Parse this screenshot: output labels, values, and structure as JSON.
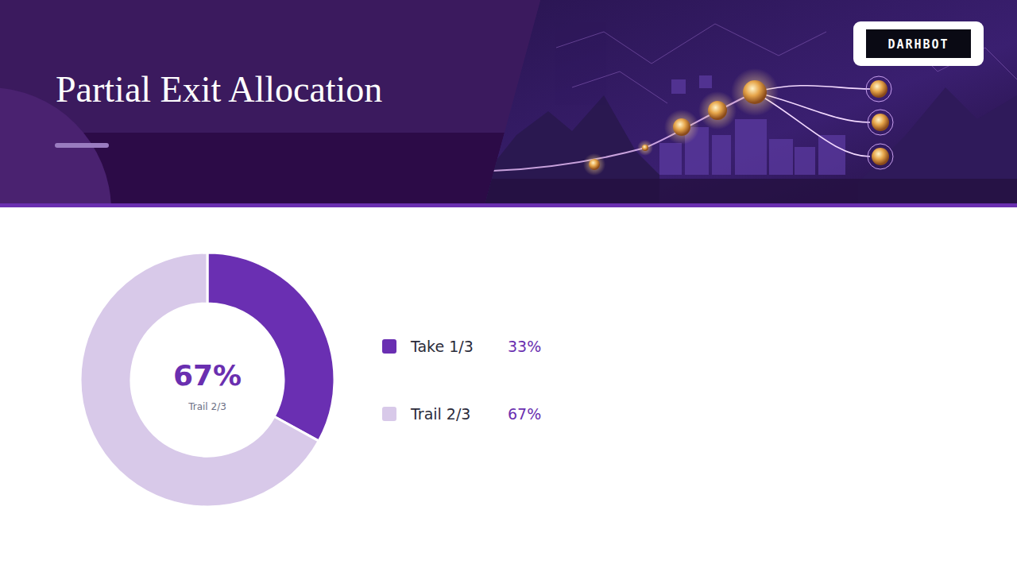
{
  "brand": "DARHBOT",
  "chart_data": {
    "type": "pie",
    "title": "Partial Exit Allocation",
    "categories": [
      "Take 1/3",
      "Trail 2/3"
    ],
    "values": [
      33,
      67
    ],
    "value_labels": [
      "33%",
      "67%"
    ],
    "colors": [
      "#6a2fb2",
      "#d8c9e9"
    ],
    "legend": "right",
    "data_labels": true
  }
}
